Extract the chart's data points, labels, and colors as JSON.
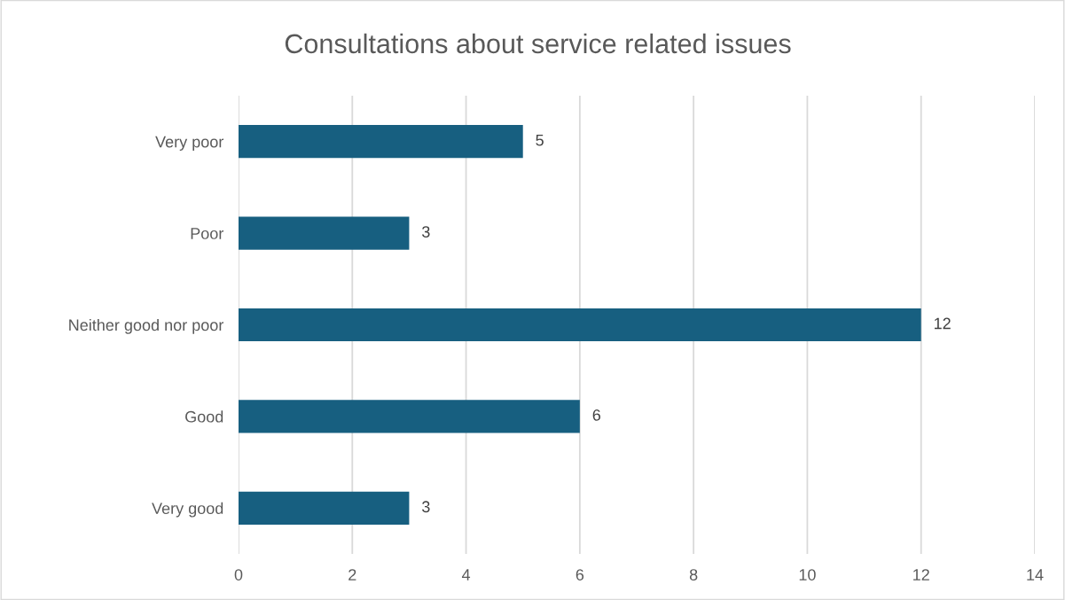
{
  "chart_data": {
    "type": "bar",
    "orientation": "horizontal",
    "title": "Consultations about service related issues",
    "categories": [
      "Very poor",
      "Poor",
      "Neither good nor poor",
      "Good",
      "Very good"
    ],
    "values": [
      5,
      3,
      12,
      6,
      3
    ],
    "color": "#175f80",
    "xlim": [
      0,
      14
    ],
    "xticks": [
      0,
      2,
      4,
      6,
      8,
      10,
      12,
      14
    ],
    "grid": "x",
    "data_labels": true
  }
}
